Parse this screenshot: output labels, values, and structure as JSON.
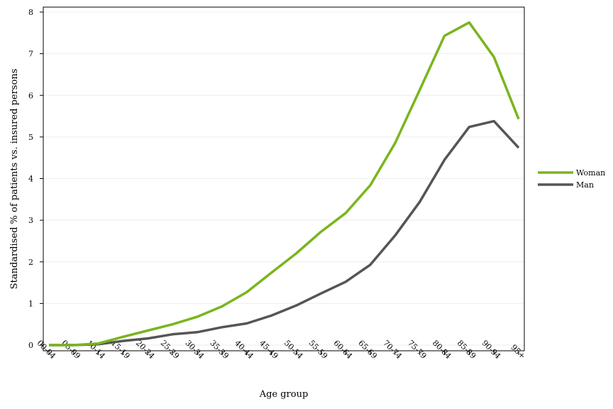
{
  "chart_data": {
    "type": "line",
    "xlabel": "Age group",
    "ylabel": "Standardised % of patients vs. insured persons",
    "ylim": [
      0,
      8
    ],
    "yticks": [
      0,
      1,
      2,
      3,
      4,
      5,
      6,
      7,
      8
    ],
    "grid": true,
    "legend_position": "right",
    "categories": [
      "00-04",
      "05-09",
      "10-14",
      "15-19",
      "20-24",
      "25-29",
      "30-34",
      "35-39",
      "40-44",
      "45-49",
      "50-54",
      "55-59",
      "60-64",
      "65-69",
      "70-74",
      "75-79",
      "80-84",
      "85-89",
      "90-94",
      "95+"
    ],
    "series": [
      {
        "name": "Woman",
        "color": "#7ab51d",
        "values": [
          0.0,
          0.0,
          0.04,
          0.2,
          0.35,
          0.5,
          0.68,
          0.93,
          1.27,
          1.74,
          2.2,
          2.72,
          3.17,
          3.84,
          4.85,
          6.13,
          7.43,
          7.75,
          6.92,
          5.43
        ]
      },
      {
        "name": "Man",
        "color": "#555555",
        "values": [
          0.0,
          0.0,
          0.02,
          0.1,
          0.16,
          0.26,
          0.31,
          0.43,
          0.52,
          0.71,
          0.95,
          1.24,
          1.52,
          1.93,
          2.63,
          3.44,
          4.45,
          5.24,
          5.38,
          4.74
        ]
      }
    ]
  }
}
